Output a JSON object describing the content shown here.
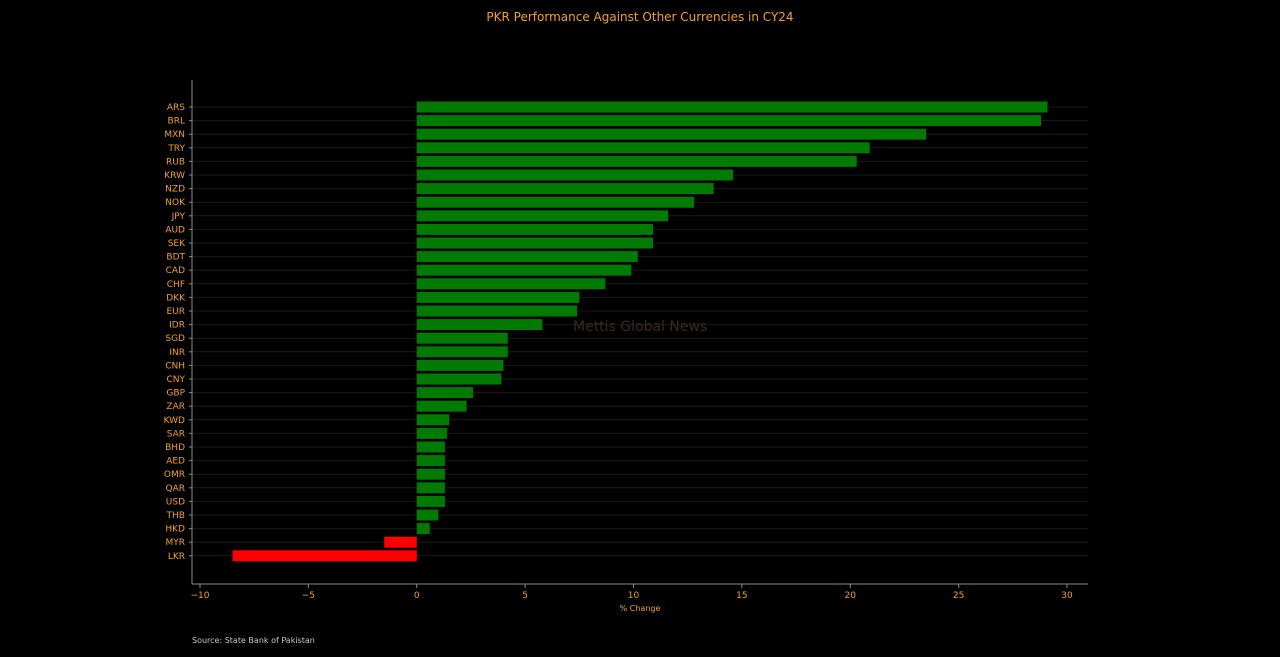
{
  "page": {
    "source": "Source: State Bank of Pakistan",
    "watermark": "Mettis Global News"
  },
  "colors": {
    "background": "#000000",
    "positive_bar": "#007a00",
    "negative_bar": "#ff0000",
    "text": "#f0a030",
    "axis": "#8a8a8a",
    "grid": "#1a1a1a"
  },
  "chart_data": {
    "type": "bar",
    "orientation": "horizontal",
    "title": "PKR Performance Against Other Currencies in CY24",
    "xlabel": "% Change",
    "ylabel": "",
    "xlim": [
      -10,
      30
    ],
    "xticks": [
      -10,
      -5,
      0,
      5,
      10,
      15,
      20,
      25,
      30
    ],
    "xtick_labels": [
      "−10",
      "−5",
      "0",
      "5",
      "10",
      "15",
      "20",
      "25",
      "30"
    ],
    "grid": "horizontal",
    "categories": [
      "ARS",
      "BRL",
      "MXN",
      "TRY",
      "RUB",
      "KRW",
      "NZD",
      "NOK",
      "JPY",
      "AUD",
      "SEK",
      "BDT",
      "CAD",
      "CHF",
      "DKK",
      "EUR",
      "IDR",
      "SGD",
      "INR",
      "CNH",
      "CNY",
      "GBP",
      "ZAR",
      "KWD",
      "SAR",
      "BHD",
      "AED",
      "OMR",
      "QAR",
      "USD",
      "THB",
      "HKD",
      "MYR",
      "LKR"
    ],
    "values": [
      29.1,
      28.8,
      23.5,
      20.9,
      20.3,
      14.6,
      13.7,
      12.8,
      11.6,
      10.9,
      10.9,
      10.2,
      9.9,
      8.7,
      7.5,
      7.4,
      5.8,
      4.2,
      4.2,
      4.0,
      3.9,
      2.6,
      2.3,
      1.5,
      1.4,
      1.3,
      1.3,
      1.3,
      1.3,
      1.3,
      1.0,
      0.6,
      -1.5,
      -8.5
    ]
  }
}
